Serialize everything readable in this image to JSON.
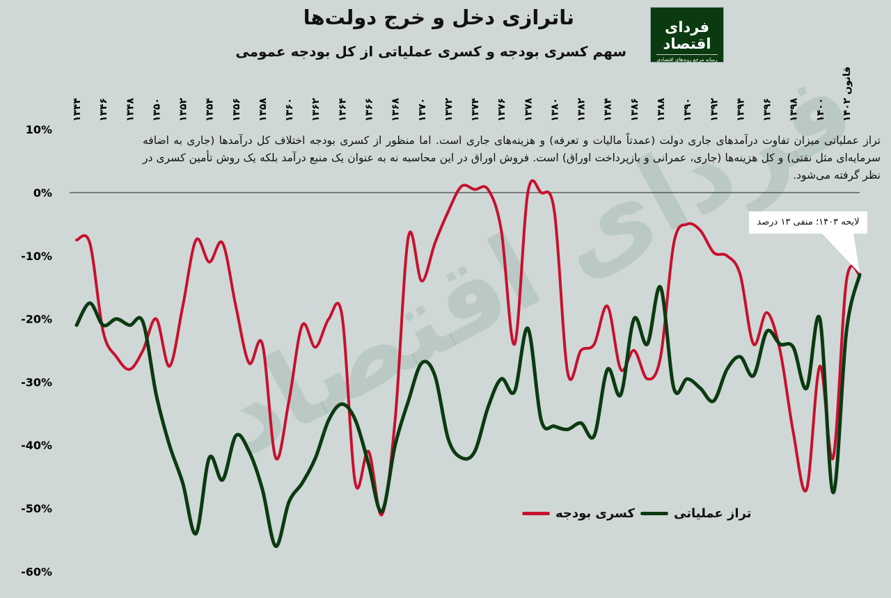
{
  "title": "ناترازی دخل و خرج دولت‌ها",
  "subtitle": "سهم کسری بودجه و کسری عملیاتی از کل بودجه عمومی",
  "logo": {
    "name": "فردای اقتصاد",
    "tagline": "رسانه مرجع روندهای اقتصادی"
  },
  "note": "تراز عملیاتی میزان تفاوت درآمدهای جاری دولت (عمدتاً مالیات و تعرفه) و هزینه‌های جاری است. اما منظور از کسری بودجه اختلاف کل درآمدها (جاری به اضافه سرمایه‌ای مثل نفتی) و کل هزینه‌ها (جاری، عمرانی و بازپرداخت اوراق) است. فروش اوراق در این محاسبه نه به عنوان یک منبع درآمد بلکه یک روش تأمین کسری در نظر گرفته می‌شود.",
  "callout": "لایحه ۱۴۰۳؛ منفی ۱۳ درصد",
  "colors": {
    "deficit": "#c8102e",
    "operating": "#0b3a10",
    "background": "#cfd8d6"
  },
  "chart_data": {
    "type": "line",
    "title": "ناترازی دخل و خرج دولت‌ها",
    "xlabel": "",
    "ylabel": "",
    "ylim": [
      -60,
      10
    ],
    "yticks": [
      10,
      0,
      -10,
      -20,
      -30,
      -40,
      -50,
      -60
    ],
    "ytick_labels": [
      "10%",
      "0%",
      "-10%",
      "-20%",
      "-30%",
      "-40%",
      "-50%",
      "-60%"
    ],
    "xlim": [
      1344,
      1403
    ],
    "xticks": [
      1344,
      1346,
      1348,
      1350,
      1352,
      1354,
      1356,
      1358,
      1360,
      1362,
      1364,
      1366,
      1368,
      1370,
      1372,
      1374,
      1376,
      1378,
      1380,
      1382,
      1384,
      1386,
      1388,
      1390,
      1392,
      1394,
      1396,
      1398,
      1400,
      1402
    ],
    "xtick_labels": [
      "۱۳۴۴",
      "۱۳۴۶",
      "۱۳۴۸",
      "۱۳۵۰",
      "۱۳۵۲",
      "۱۳۵۴",
      "۱۳۵۶",
      "۱۳۵۸",
      "۱۳۶۰",
      "۱۳۶۲",
      "۱۳۶۴",
      "۱۳۶۶",
      "۱۳۶۸",
      "۱۳۷۰",
      "۱۳۷۲",
      "۱۳۷۴",
      "۱۳۷۶",
      "۱۳۷۸",
      "۱۳۸۰",
      "۱۳۸۲",
      "۱۳۸۴",
      "۱۳۸۶",
      "۱۳۸۸",
      "۱۳۹۰",
      "۱۳۹۲",
      "۱۳۹۴",
      "۱۳۹۶",
      "۱۳۹۸",
      "۱۴۰۰",
      "قانون ۱۴۰۲"
    ],
    "x": [
      1344,
      1345,
      1346,
      1347,
      1348,
      1349,
      1350,
      1351,
      1352,
      1353,
      1354,
      1355,
      1356,
      1357,
      1358,
      1359,
      1360,
      1361,
      1362,
      1363,
      1364,
      1365,
      1366,
      1367,
      1368,
      1369,
      1370,
      1371,
      1372,
      1373,
      1374,
      1375,
      1376,
      1377,
      1378,
      1379,
      1380,
      1381,
      1382,
      1383,
      1384,
      1385,
      1386,
      1387,
      1388,
      1389,
      1390,
      1391,
      1392,
      1393,
      1394,
      1395,
      1396,
      1397,
      1398,
      1399,
      1400,
      1401,
      1402,
      1403
    ],
    "series": [
      {
        "name": "کسری بودجه",
        "color": "#c8102e",
        "values": [
          -7.5,
          -8,
          -22,
          -26,
          -28,
          -25,
          -20,
          -27.5,
          -18,
          -7.5,
          -11,
          -8,
          -18,
          -27,
          -24,
          -42,
          -33,
          -21,
          -24.5,
          -20,
          -19.5,
          -46,
          -41,
          -51,
          -36,
          -7,
          -14,
          -8,
          -3,
          1,
          0.5,
          0.5,
          -6,
          -24,
          0,
          0,
          -3,
          -28.5,
          -25,
          -24,
          -18,
          -28,
          -25,
          -29.5,
          -26,
          -8,
          -5,
          -6,
          -9.5,
          -10,
          -13,
          -24,
          -19,
          -25,
          -38,
          -47,
          -27.5,
          -42,
          -14,
          -13
        ]
      },
      {
        "name": "تراز عملیاتی",
        "color": "#0b3a10",
        "values": [
          -21,
          -17.5,
          -21,
          -20,
          -21,
          -20.5,
          -32,
          -40,
          -46,
          -54,
          -42,
          -45.5,
          -38.5,
          -41,
          -47,
          -56,
          -49,
          -46,
          -42,
          -36,
          -33.5,
          -36,
          -43,
          -50.5,
          -40,
          -33,
          -27,
          -29,
          -39,
          -42,
          -41,
          -34,
          -29.5,
          -31.5,
          -21.5,
          -36,
          -37,
          -37.5,
          -36.5,
          -38.5,
          -28,
          -32,
          -20,
          -24,
          -15,
          -31,
          -29.5,
          -31,
          -33,
          -28,
          -26,
          -29,
          -22,
          -24,
          -24.5,
          -31,
          -20,
          -47.5,
          -22,
          -13
        ]
      }
    ],
    "annotations": [
      "لایحه ۱۴۰۳؛ منفی ۱۳ درصد"
    ],
    "legend": "bottom-right",
    "grid": false
  }
}
